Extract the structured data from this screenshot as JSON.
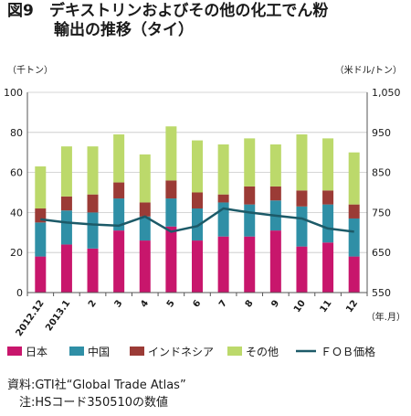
{
  "title": "図9　デキストリンおよびその他の化工でん粉\n　　　輸出の推移（タイ）",
  "source": {
    "line1": "資料:GTI社“Global Trade Atlas”",
    "line2": "　注:HSコード350510の数値"
  },
  "chart_data": {
    "type": "bar",
    "stacked": true,
    "categories": [
      "2012.12",
      "2013.1",
      "2",
      "3",
      "4",
      "5",
      "6",
      "7",
      "8",
      "9",
      "10",
      "11",
      "12"
    ],
    "y_left": {
      "label": "（千トン）",
      "ticks": [
        "0",
        "20",
        "40",
        "60",
        "80",
        "100"
      ],
      "range": [
        0,
        100
      ]
    },
    "y_right": {
      "label": "（米ドル/トン）",
      "ticks": [
        "550",
        "650",
        "750",
        "850",
        "950",
        "1,050"
      ],
      "range": [
        550,
        1050
      ]
    },
    "x_unit_label": "（年.月）",
    "grid": true,
    "legend_position": "bottom",
    "series": [
      {
        "name": "日本",
        "color": "#c8166c",
        "axis": "left",
        "values": [
          18,
          24,
          22,
          31,
          26,
          33,
          26,
          28,
          28,
          31,
          23,
          25,
          18
        ]
      },
      {
        "name": "中国",
        "color": "#2f8fa6",
        "axis": "left",
        "values": [
          17,
          17,
          18,
          16,
          12,
          14,
          16,
          17,
          16,
          15,
          20,
          19,
          19
        ]
      },
      {
        "name": "インドネシア",
        "color": "#9b3b36",
        "axis": "left",
        "values": [
          7,
          7,
          9,
          8,
          7,
          9,
          8,
          4,
          9,
          7,
          8,
          7,
          7
        ]
      },
      {
        "name": "その他",
        "color": "#bcd96b",
        "axis": "left",
        "values": [
          21,
          25,
          24,
          24,
          24,
          27,
          26,
          25,
          24,
          21,
          28,
          26,
          26
        ]
      },
      {
        "name": "ＦＯＢ価格",
        "color": "#1c5a68",
        "axis": "right",
        "type": "line",
        "values": [
          733,
          725,
          720,
          717,
          740,
          702,
          716,
          760,
          750,
          742,
          735,
          710,
          702
        ]
      }
    ]
  }
}
